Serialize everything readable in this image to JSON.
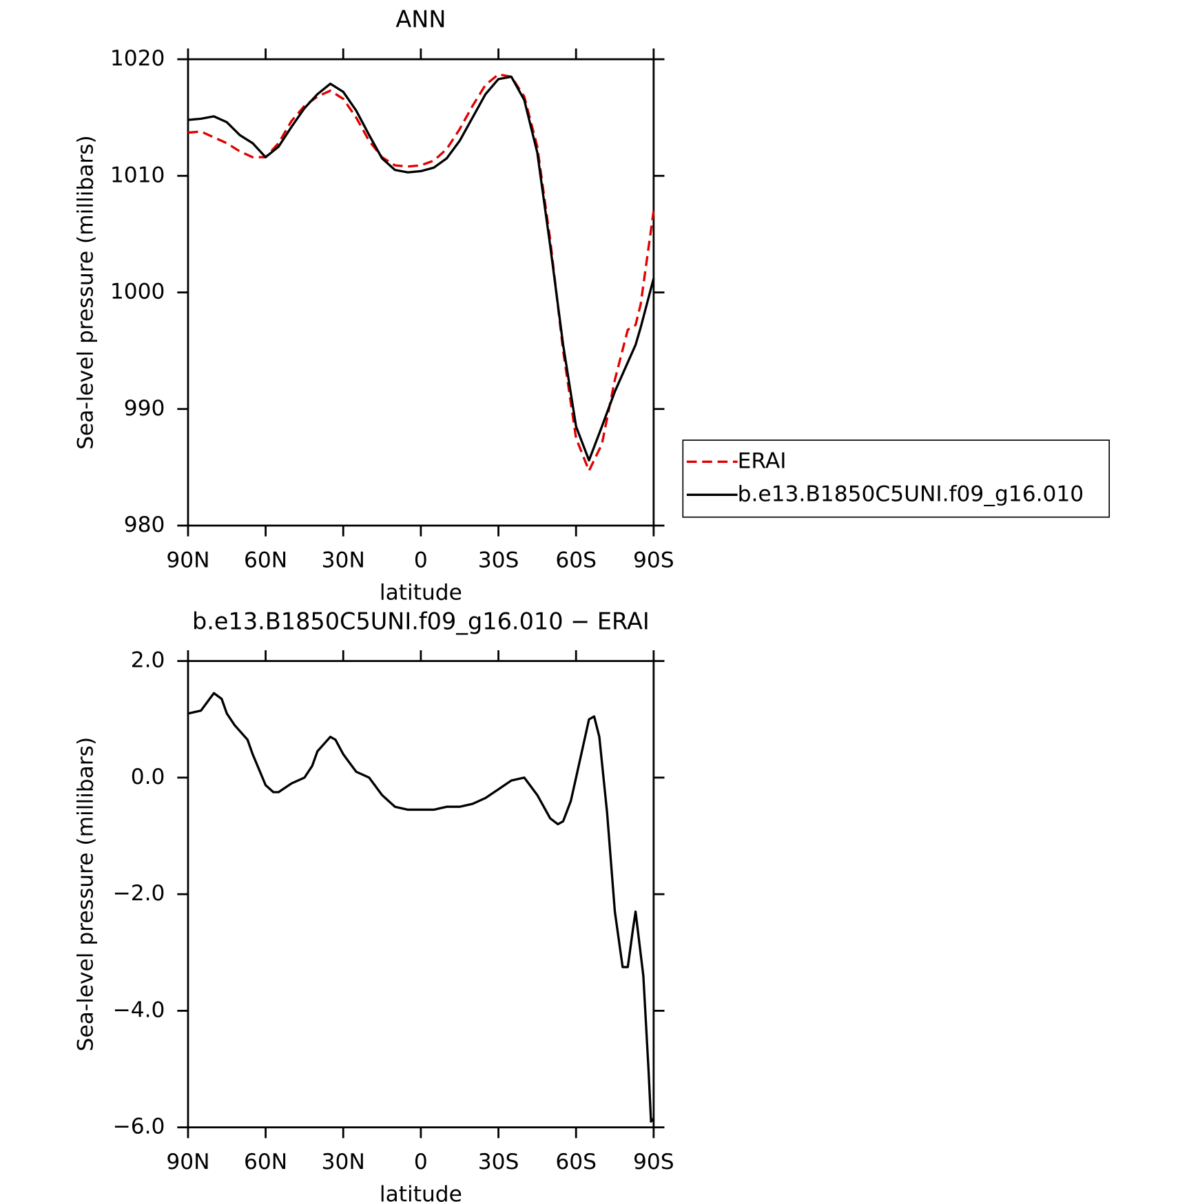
{
  "chart_data": [
    {
      "type": "line",
      "title": "ANN",
      "xlabel": "latitude",
      "ylabel": "Sea-level pressure (millibars)",
      "x": [
        90,
        85,
        80,
        75,
        70,
        65,
        60,
        55,
        50,
        45,
        40,
        35,
        30,
        25,
        20,
        15,
        10,
        5,
        0,
        -5,
        -10,
        -15,
        -20,
        -25,
        -30,
        -35,
        -40,
        -45,
        -50,
        -55,
        -60,
        -65,
        -70,
        -75,
        -80,
        -83,
        -85,
        -90
      ],
      "series": [
        {
          "name": "ERAI",
          "color": "#e00000",
          "dash": true,
          "values": [
            1013.7,
            1013.8,
            1013.3,
            1012.8,
            1012.1,
            1011.6,
            1011.6,
            1012.8,
            1014.7,
            1016.0,
            1016.8,
            1017.3,
            1016.6,
            1015.0,
            1013.0,
            1011.6,
            1010.9,
            1010.8,
            1010.9,
            1011.3,
            1012.3,
            1014.0,
            1016.0,
            1017.8,
            1018.7,
            1018.5,
            1016.8,
            1012.5,
            1004.5,
            995.0,
            987.5,
            984.7,
            987.0,
            992.5,
            996.8,
            997.2,
            999.0,
            1007.0
          ]
        },
        {
          "name": "b.e13.B1850C5UNI.f09_g16.010",
          "color": "#000000",
          "dash": false,
          "values": [
            1014.8,
            1014.9,
            1015.1,
            1014.6,
            1013.5,
            1012.8,
            1011.6,
            1012.5,
            1014.2,
            1015.8,
            1017.0,
            1017.9,
            1017.2,
            1015.6,
            1013.5,
            1011.5,
            1010.5,
            1010.3,
            1010.4,
            1010.7,
            1011.5,
            1013.0,
            1015.0,
            1017.0,
            1018.3,
            1018.5,
            1016.5,
            1012.0,
            1004.0,
            995.5,
            988.5,
            985.6,
            988.5,
            991.5,
            994.0,
            995.5,
            997.0,
            1001.2
          ]
        }
      ],
      "xlim": [
        90,
        -90
      ],
      "xticks": [
        {
          "value": 90,
          "label": "90N"
        },
        {
          "value": 60,
          "label": "60N"
        },
        {
          "value": 30,
          "label": "30N"
        },
        0,
        {
          "value": -30,
          "label": "30S"
        },
        {
          "value": -60,
          "label": "60S"
        },
        {
          "value": -90,
          "label": "90S"
        }
      ],
      "ylim": [
        980,
        1020
      ],
      "yticks": [
        980,
        990,
        1000,
        1010,
        1020
      ],
      "legend": "right"
    },
    {
      "type": "line",
      "title": "b.e13.B1850C5UNI.f09_g16.010 − ERAI",
      "xlabel": "latitude",
      "ylabel": "Sea-level pressure (millibars)",
      "x": [
        90,
        85,
        80,
        77,
        75,
        72,
        70,
        67,
        65,
        60,
        57,
        55,
        50,
        45,
        42,
        40,
        35,
        33,
        30,
        25,
        20,
        15,
        10,
        5,
        0,
        -5,
        -10,
        -15,
        -20,
        -25,
        -30,
        -35,
        -40,
        -45,
        -50,
        -53,
        -55,
        -58,
        -60,
        -63,
        -65,
        -67,
        -69,
        -72,
        -75,
        -78,
        -80,
        -82,
        -83,
        -86,
        -88,
        -89,
        -90
      ],
      "series": [
        {
          "color": "#000000",
          "dash": false,
          "values": [
            1.1,
            1.15,
            1.45,
            1.35,
            1.1,
            0.9,
            0.8,
            0.65,
            0.4,
            -0.13,
            -0.25,
            -0.25,
            -0.1,
            0.0,
            0.2,
            0.45,
            0.7,
            0.65,
            0.4,
            0.1,
            0.0,
            -0.3,
            -0.5,
            -0.55,
            -0.55,
            -0.55,
            -0.5,
            -0.5,
            -0.45,
            -0.35,
            -0.2,
            -0.05,
            0.0,
            -0.3,
            -0.7,
            -0.8,
            -0.75,
            -0.4,
            0.0,
            0.6,
            1.0,
            1.05,
            0.7,
            -0.6,
            -2.3,
            -3.25,
            -3.25,
            -2.6,
            -2.3,
            -3.4,
            -5.0,
            -5.9,
            -5.85
          ]
        }
      ],
      "xlim": [
        90,
        -90
      ],
      "xticks": [
        {
          "value": 90,
          "label": "90N"
        },
        {
          "value": 60,
          "label": "60N"
        },
        {
          "value": 30,
          "label": "30N"
        },
        0,
        {
          "value": -30,
          "label": "30S"
        },
        {
          "value": -60,
          "label": "60S"
        },
        {
          "value": -90,
          "label": "90S"
        }
      ],
      "ylim": [
        -6,
        2
      ],
      "yticks": [
        {
          "value": -6,
          "label": "−6.0"
        },
        {
          "value": -4,
          "label": "−4.0"
        },
        {
          "value": -2,
          "label": "−2.0"
        },
        {
          "value": 0,
          "label": "0.0"
        },
        {
          "value": 2,
          "label": "2.0"
        }
      ]
    }
  ]
}
